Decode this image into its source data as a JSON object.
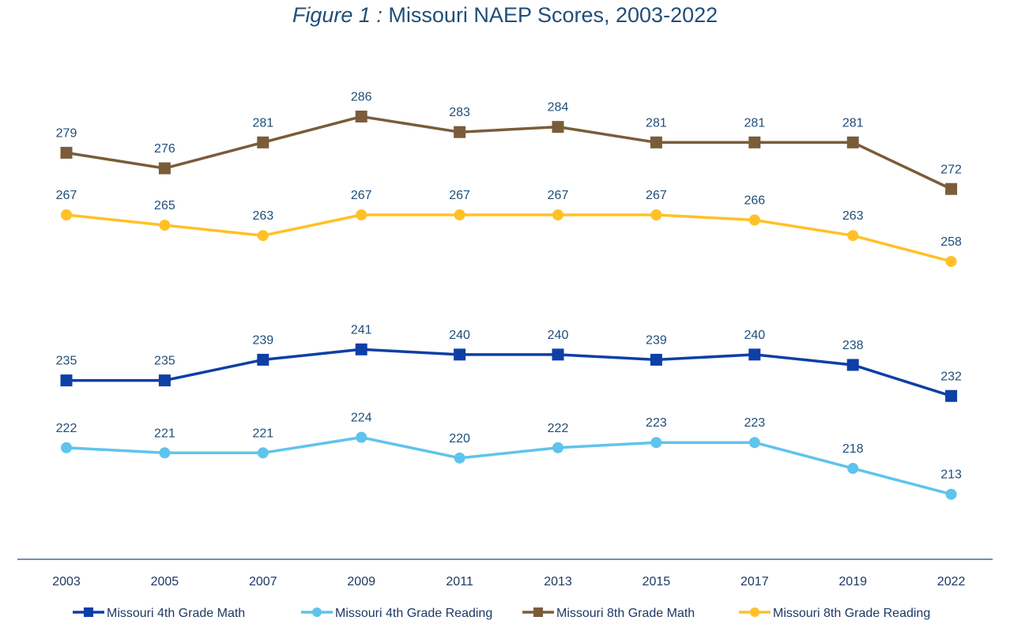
{
  "chart_data": {
    "type": "line",
    "title_prefix": "Figure 1 :",
    "title": "Missouri NAEP Scores, 2003-2022",
    "xlabel": "",
    "ylabel": "",
    "categories": [
      "2003",
      "2005",
      "2007",
      "2009",
      "2011",
      "2013",
      "2015",
      "2017",
      "2019",
      "2022"
    ],
    "grid": false,
    "legend_position": "bottom",
    "series": [
      {
        "name": "Missouri 4th Grade Math",
        "marker": "square",
        "color": "#0d3fa6",
        "values": [
          235,
          235,
          239,
          241,
          240,
          240,
          239,
          240,
          238,
          232
        ]
      },
      {
        "name": "Missouri 4th Grade Reading",
        "marker": "circle",
        "color": "#5ec4ec",
        "values": [
          222,
          221,
          221,
          224,
          220,
          222,
          223,
          223,
          218,
          213
        ]
      },
      {
        "name": "Missouri 8th Grade Math",
        "marker": "square",
        "color": "#7a5c3a",
        "values": [
          279,
          276,
          281,
          286,
          283,
          284,
          281,
          281,
          281,
          272
        ]
      },
      {
        "name": "Missouri 8th Grade Reading",
        "marker": "circle",
        "color": "#ffc125",
        "values": [
          267,
          265,
          263,
          267,
          267,
          267,
          267,
          266,
          263,
          258
        ]
      }
    ],
    "axis_color": "#4a6a8a",
    "label_color": "#1f4e79"
  }
}
